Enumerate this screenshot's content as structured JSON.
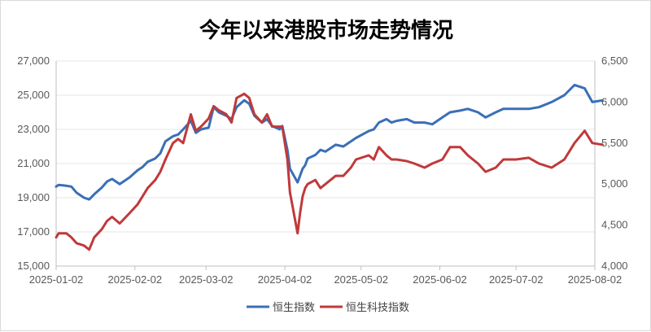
{
  "colors": {
    "hsi": "#3a6fb7",
    "hstech": "#c0393b"
  },
  "chart_data": {
    "type": "line",
    "title": "今年以来港股市场走势情况",
    "x_tick_labels": [
      "2025-01-02",
      "2025-02-02",
      "2025-03-02",
      "2025-04-02",
      "2025-05-02",
      "2025-06-02",
      "2025-07-02",
      "2025-08-02"
    ],
    "x_ticks_dates": [
      "2025-01-02",
      "2025-02-02",
      "2025-03-02",
      "2025-04-02",
      "2025-05-02",
      "2025-06-02",
      "2025-07-02",
      "2025-08-02"
    ],
    "y_left": {
      "ylim": [
        15000,
        27000
      ],
      "ticks": [
        "15,000",
        "17,000",
        "19,000",
        "21,000",
        "23,000",
        "25,000",
        "27,000"
      ]
    },
    "y_right": {
      "ylim": [
        4000,
        6500
      ],
      "ticks": [
        "4,000",
        "4,500",
        "5,000",
        "5,500",
        "6,000",
        "6,500"
      ]
    },
    "grid": true,
    "legend": "bottom",
    "series": [
      {
        "name": "恒生指数",
        "axis": "left",
        "x": [
          "2025-01-02",
          "2025-01-03",
          "2025-01-06",
          "2025-01-08",
          "2025-01-10",
          "2025-01-13",
          "2025-01-15",
          "2025-01-17",
          "2025-01-20",
          "2025-01-22",
          "2025-01-24",
          "2025-01-27",
          "2025-01-31",
          "2025-02-03",
          "2025-02-05",
          "2025-02-07",
          "2025-02-10",
          "2025-02-12",
          "2025-02-14",
          "2025-02-17",
          "2025-02-19",
          "2025-02-21",
          "2025-02-24",
          "2025-02-26",
          "2025-02-28",
          "2025-03-03",
          "2025-03-05",
          "2025-03-07",
          "2025-03-10",
          "2025-03-12",
          "2025-03-14",
          "2025-03-17",
          "2025-03-19",
          "2025-03-21",
          "2025-03-24",
          "2025-03-26",
          "2025-03-28",
          "2025-03-31",
          "2025-04-01",
          "2025-04-03",
          "2025-04-04",
          "2025-04-07",
          "2025-04-08",
          "2025-04-09",
          "2025-04-10",
          "2025-04-11",
          "2025-04-14",
          "2025-04-16",
          "2025-04-18",
          "2025-04-22",
          "2025-04-25",
          "2025-04-28",
          "2025-04-30",
          "2025-05-05",
          "2025-05-07",
          "2025-05-09",
          "2025-05-12",
          "2025-05-14",
          "2025-05-16",
          "2025-05-20",
          "2025-05-23",
          "2025-05-27",
          "2025-05-30",
          "2025-06-03",
          "2025-06-06",
          "2025-06-10",
          "2025-06-13",
          "2025-06-17",
          "2025-06-20",
          "2025-06-24",
          "2025-06-27",
          "2025-07-02",
          "2025-07-07",
          "2025-07-11",
          "2025-07-16",
          "2025-07-21",
          "2025-07-25",
          "2025-07-29",
          "2025-08-01",
          "2025-08-05"
        ],
        "values": [
          19650,
          19750,
          19700,
          19650,
          19300,
          19000,
          18900,
          19200,
          19600,
          19950,
          20100,
          19800,
          20200,
          20600,
          20800,
          21100,
          21300,
          21600,
          22300,
          22600,
          22700,
          23000,
          23500,
          22800,
          23000,
          23100,
          24300,
          24000,
          23800,
          23600,
          24300,
          24700,
          24500,
          23800,
          23400,
          23600,
          23200,
          23000,
          23200,
          21800,
          20700,
          19900,
          20300,
          20700,
          20900,
          21300,
          21500,
          21800,
          21700,
          22100,
          22000,
          22300,
          22500,
          22900,
          23000,
          23400,
          23600,
          23400,
          23500,
          23600,
          23400,
          23400,
          23300,
          23700,
          24000,
          24100,
          24200,
          24000,
          23700,
          24000,
          24200,
          24200,
          24200,
          24300,
          24600,
          25000,
          25600,
          25400,
          24600,
          24700
        ]
      },
      {
        "name": "恒生科技指数",
        "axis": "right",
        "x": [
          "2025-01-02",
          "2025-01-03",
          "2025-01-06",
          "2025-01-08",
          "2025-01-10",
          "2025-01-13",
          "2025-01-15",
          "2025-01-17",
          "2025-01-20",
          "2025-01-22",
          "2025-01-24",
          "2025-01-27",
          "2025-01-31",
          "2025-02-03",
          "2025-02-05",
          "2025-02-07",
          "2025-02-10",
          "2025-02-12",
          "2025-02-14",
          "2025-02-17",
          "2025-02-19",
          "2025-02-21",
          "2025-02-24",
          "2025-02-26",
          "2025-02-28",
          "2025-03-03",
          "2025-03-05",
          "2025-03-07",
          "2025-03-10",
          "2025-03-12",
          "2025-03-14",
          "2025-03-17",
          "2025-03-19",
          "2025-03-21",
          "2025-03-24",
          "2025-03-26",
          "2025-03-28",
          "2025-03-31",
          "2025-04-01",
          "2025-04-03",
          "2025-04-04",
          "2025-04-07",
          "2025-04-08",
          "2025-04-09",
          "2025-04-10",
          "2025-04-11",
          "2025-04-14",
          "2025-04-16",
          "2025-04-18",
          "2025-04-22",
          "2025-04-25",
          "2025-04-28",
          "2025-04-30",
          "2025-05-05",
          "2025-05-07",
          "2025-05-09",
          "2025-05-12",
          "2025-05-14",
          "2025-05-16",
          "2025-05-20",
          "2025-05-23",
          "2025-05-27",
          "2025-05-30",
          "2025-06-03",
          "2025-06-06",
          "2025-06-10",
          "2025-06-13",
          "2025-06-17",
          "2025-06-20",
          "2025-06-24",
          "2025-06-27",
          "2025-07-02",
          "2025-07-07",
          "2025-07-11",
          "2025-07-16",
          "2025-07-21",
          "2025-07-25",
          "2025-07-29",
          "2025-08-01",
          "2025-08-05"
        ],
        "values": [
          4350,
          4400,
          4400,
          4350,
          4280,
          4250,
          4200,
          4350,
          4450,
          4550,
          4600,
          4520,
          4650,
          4750,
          4850,
          4950,
          5050,
          5150,
          5300,
          5500,
          5550,
          5500,
          5850,
          5650,
          5700,
          5800,
          5950,
          5900,
          5850,
          5750,
          6050,
          6100,
          6050,
          5850,
          5750,
          5850,
          5700,
          5700,
          5700,
          5300,
          4900,
          4400,
          4650,
          4850,
          4950,
          5000,
          5050,
          4950,
          5000,
          5100,
          5100,
          5200,
          5300,
          5350,
          5300,
          5450,
          5350,
          5300,
          5300,
          5280,
          5250,
          5200,
          5250,
          5300,
          5450,
          5450,
          5350,
          5250,
          5150,
          5200,
          5300,
          5300,
          5320,
          5250,
          5200,
          5300,
          5500,
          5650,
          5500,
          5480
        ]
      }
    ]
  }
}
